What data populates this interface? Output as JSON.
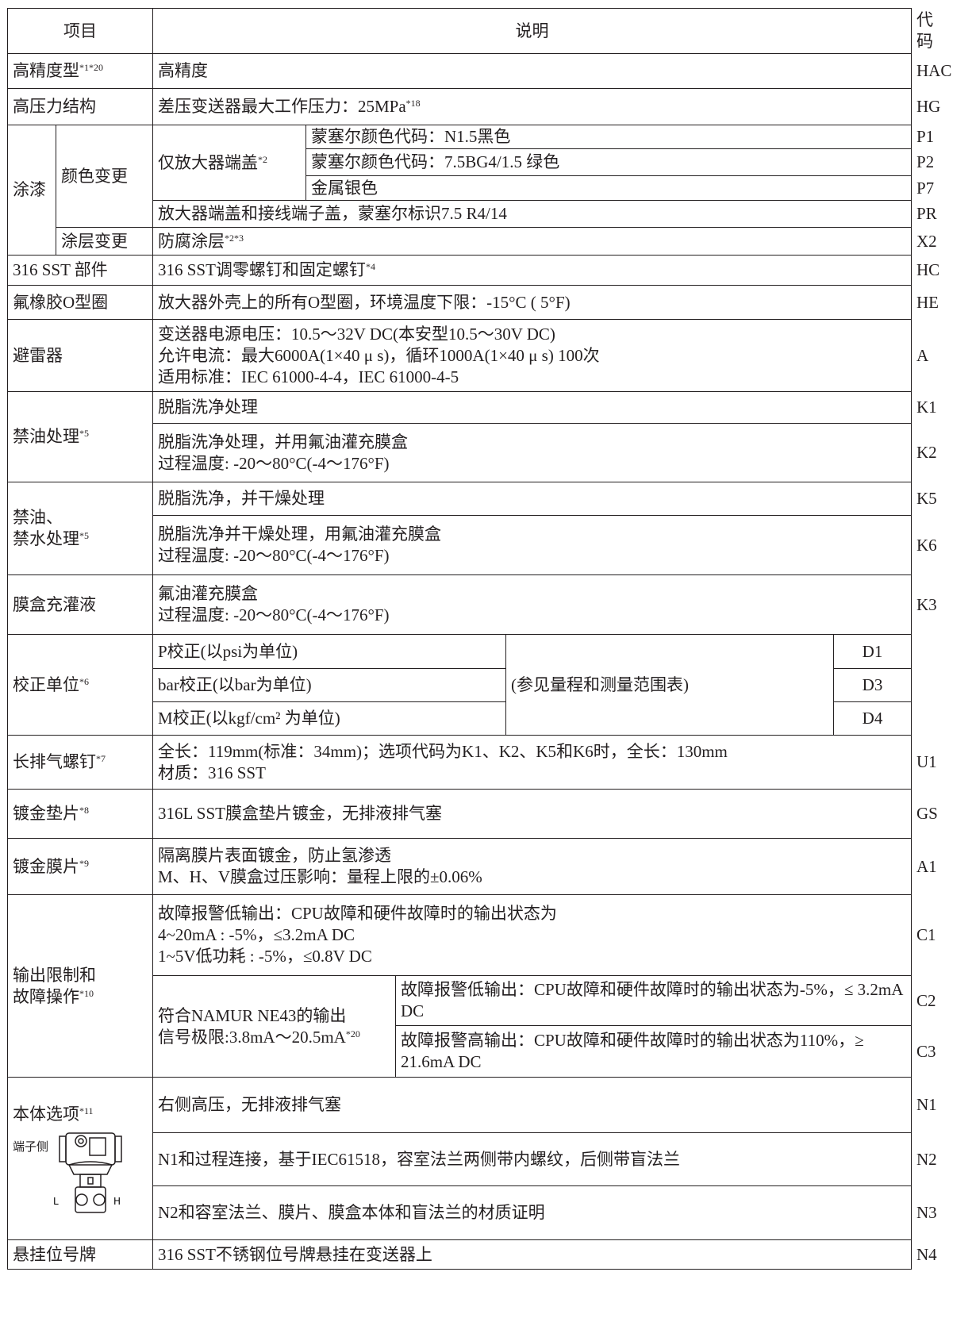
{
  "header": {
    "item": "项目",
    "desc": "说明",
    "code": "代码"
  },
  "rows": {
    "hac": {
      "item": "高精度型",
      "sup": "*1*20",
      "desc": "高精度",
      "code": "HAC"
    },
    "hg": {
      "item": "高压力结构",
      "desc": "差压变送器最大工作压力：25MPa",
      "sup": "*18",
      "code": "HG"
    },
    "paint": {
      "item": "涂漆",
      "color_change": "颜色变更",
      "amp_cover": "仅放大器端盖",
      "amp_sup": "*2",
      "p1": {
        "desc": "蒙塞尔颜色代码：N1.5黑色",
        "code": "P1"
      },
      "p2": {
        "desc": "蒙塞尔颜色代码：7.5BG4/1.5 绿色",
        "code": "P2"
      },
      "p7": {
        "desc": "金属银色",
        "code": "P7"
      },
      "pr": {
        "desc": "放大器端盖和接线端子盖，蒙塞尔标识7.5 R4/14",
        "code": "PR"
      },
      "coating_change": "涂层变更",
      "x2": {
        "desc": "防腐涂层",
        "sup": "*2*3",
        "code": "X2"
      }
    },
    "hc": {
      "item": "316 SST 部件",
      "desc": "316 SST调零螺钉和固定螺钉",
      "sup": "*4",
      "code": "HC"
    },
    "he": {
      "item": "氟橡胶O型圈",
      "desc": "放大器外壳上的所有O型圈，环境温度下限：-15°C ( 5°F)",
      "code": "HE"
    },
    "a": {
      "item": "避雷器",
      "desc": "变送器电源电压：10.5～32V DC(本安型10.5～30V DC)\n允许电流：最大6000A(1×40 μ s)，循环1000A(1×40 μ s) 100次\n适用标准：IEC 61000-4-4，IEC 61000-4-5",
      "code": "A"
    },
    "oilfree": {
      "item": "禁油处理",
      "sup": "*5",
      "k1": {
        "desc": "脱脂洗净处理",
        "code": "K1"
      },
      "k2": {
        "desc": "脱脂洗净处理，并用氟油灌充膜盒\n过程温度: -20～80°C(-4～176°F)",
        "code": "K2"
      }
    },
    "oilwaterfree": {
      "item": "禁油、\n禁水处理",
      "sup": "*5",
      "k5": {
        "desc": "脱脂洗净，并干燥处理",
        "code": "K5"
      },
      "k6": {
        "desc": "脱脂洗净并干燥处理，用氟油灌充膜盒\n过程温度: -20～80°C(-4～176°F)",
        "code": "K6"
      }
    },
    "k3": {
      "item": "膜盒充灌液",
      "desc": "氟油灌充膜盒\n过程温度: -20～80°C(-4～176°F)",
      "code": "K3"
    },
    "cal": {
      "item": "校正单位",
      "sup": "*6",
      "note": "(参见量程和测量范围表)",
      "d1": {
        "desc": "P校正(以psi为单位)",
        "code": "D1"
      },
      "d3": {
        "desc": "bar校正(以bar为单位)",
        "code": "D3"
      },
      "d4": {
        "desc": "M校正(以kgf/cm² 为单位)",
        "code": "D4"
      }
    },
    "u1": {
      "item": "长排气螺钉",
      "sup": "*7",
      "desc": "全长：119mm(标准：34mm)；选项代码为K1、K2、K5和K6时，全长：130mm\n材质：316 SST",
      "code": "U1"
    },
    "gs": {
      "item": "镀金垫片",
      "sup": "*8",
      "desc": "316L SST膜盒垫片镀金，无排液排气塞",
      "code": "GS"
    },
    "a1": {
      "item": "镀金膜片",
      "sup": "*9",
      "desc": "隔离膜片表面镀金，防止氢渗透\nM、H、V膜盒过压影响：量程上限的±0.06%",
      "code": "A1"
    },
    "output": {
      "item": "输出限制和\n故障操作",
      "sup": "*10",
      "c1": {
        "desc": "故障报警低输出：CPU故障和硬件故障时的输出状态为\n4~20mA : -5%，≤3.2mA DC\n1~5V低功耗 : -5%，≤0.8V DC",
        "code": "C1"
      },
      "namur": "符合NAMUR NE43的输出\n信号极限:3.8mA～20.5mA",
      "namur_sup": "*20",
      "c2": {
        "desc": "故障报警低输出：CPU故障和硬件故障时的输出状态为-5%，≤ 3.2mA DC",
        "code": "C2"
      },
      "c3": {
        "desc": "故障报警高输出：CPU故障和硬件故障时的输出状态为110%，≥ 21.6mA DC",
        "code": "C3"
      }
    },
    "body": {
      "item": "本体选项",
      "sup": "*11",
      "terminal_side": "端子侧",
      "l": "L",
      "h": "H",
      "n1": {
        "desc": "右侧高压，无排液排气塞",
        "code": "N1"
      },
      "n2": {
        "desc": "N1和过程连接，基于IEC61518，容室法兰两侧带内螺纹，后侧带盲法兰",
        "code": "N2"
      },
      "n3": {
        "desc": "N2和容室法兰、膜片、膜盒本体和盲法兰的材质证明",
        "code": "N3"
      }
    },
    "n4": {
      "item": "悬挂位号牌",
      "desc": "316 SST不锈钢位号牌悬挂在变送器上",
      "code": "N4"
    }
  }
}
